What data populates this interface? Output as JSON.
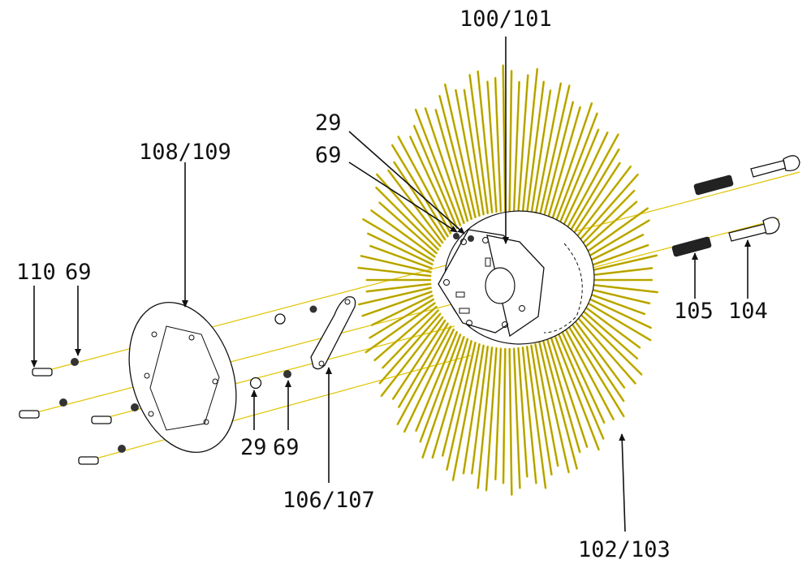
{
  "labels": {
    "l100_101": "100/101",
    "l29_top": "29",
    "l69_top": "69",
    "l108_109": "108/109",
    "l110": "110",
    "l69_left": "69",
    "l105": "105",
    "l104": "104",
    "l29_bottom": "29",
    "l69_bottom": "69",
    "l106_107": "106/107",
    "l102_103": "102/103"
  },
  "colors": {
    "bristle": "#c8b400",
    "bristle_dark": "#8a7a00",
    "axis": "#e0c400",
    "line": "#111111"
  }
}
